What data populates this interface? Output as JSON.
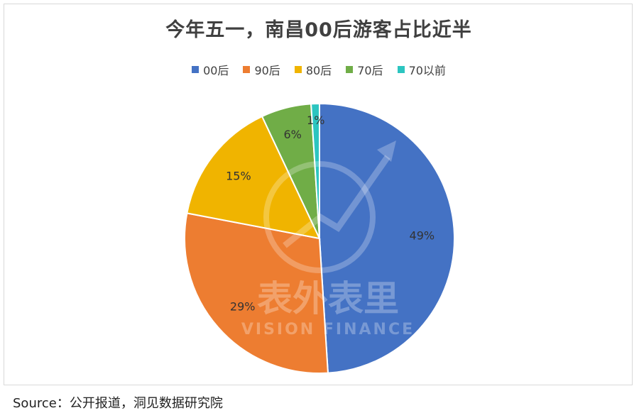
{
  "title": "今年五一，南昌00后游客占比近半",
  "source": "Source：公开报道，洞见数据研究院",
  "watermark": {
    "cn": "表外表里",
    "en": "VISION FINANCE"
  },
  "chart_data": {
    "type": "pie",
    "title": "今年五一，南昌00后游客占比近半",
    "legend_position": "top",
    "categories": [
      "00后",
      "90后",
      "80后",
      "70后",
      "70以前"
    ],
    "values": [
      49,
      29,
      15,
      6,
      1
    ],
    "labels": [
      "49%",
      "29%",
      "15%",
      "6%",
      "1%"
    ],
    "colors": [
      "#4472C4",
      "#ED7D31",
      "#F0B400",
      "#70AD47",
      "#2CC5C0"
    ]
  }
}
